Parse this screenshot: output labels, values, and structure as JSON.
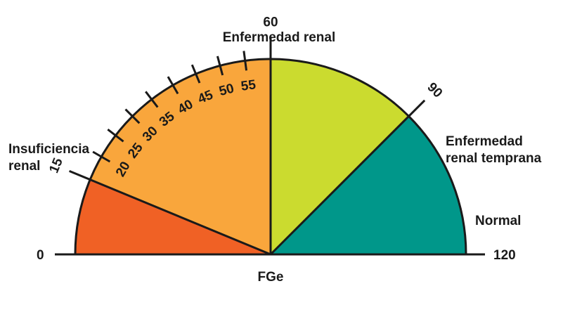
{
  "chart_data": {
    "type": "gauge",
    "title": "Enfermedad renal",
    "xlabel": "FGe",
    "range": [
      0,
      120
    ],
    "range_labels": {
      "min": "0",
      "max": "120"
    },
    "zones": [
      {
        "name": "insuficiencia",
        "label_lines": [
          "Insuficiencia",
          "renal"
        ],
        "from": 0,
        "to": 15,
        "color": "#F06125"
      },
      {
        "name": "enfermedad",
        "label_lines": [
          "Enfermedad renal"
        ],
        "from": 15,
        "to": 60,
        "color": "#F9A63C"
      },
      {
        "name": "temprana",
        "label_lines": [
          "Enfermedad",
          "renal temprana"
        ],
        "from": 60,
        "to": 90,
        "color": "#CBDB2F"
      },
      {
        "name": "normal",
        "label_lines": [
          "Normal"
        ],
        "from": 90,
        "to": 120,
        "color": "#00978A"
      }
    ],
    "minor_ticks": [
      20,
      25,
      30,
      35,
      40,
      45,
      50,
      55
    ],
    "boundary_ticks": [
      15,
      60,
      90
    ],
    "tick_label_text": {
      "15": "15",
      "20": "20",
      "25": "25",
      "30": "30",
      "35": "35",
      "40": "40",
      "45": "45",
      "50": "50",
      "55": "55",
      "60": "60",
      "90": "90"
    }
  }
}
